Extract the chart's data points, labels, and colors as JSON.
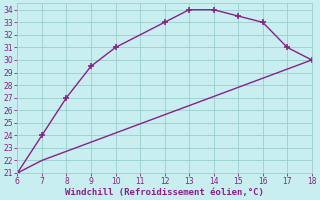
{
  "upper_line_x": [
    6,
    7,
    8,
    9,
    10,
    12,
    13,
    14,
    15,
    16,
    17,
    18
  ],
  "upper_line_y": [
    21,
    24,
    27,
    29.5,
    31,
    33,
    34,
    34,
    33.5,
    33,
    31,
    30
  ],
  "lower_line_x": [
    6,
    7,
    18
  ],
  "lower_line_y": [
    21,
    22,
    30
  ],
  "line_color": "#882288",
  "bg_color": "#c8eef0",
  "grid_color": "#9acece",
  "xlabel": "Windchill (Refroidissement éolien,°C)",
  "xlim": [
    6,
    18
  ],
  "ylim": [
    21,
    34.5
  ],
  "xticks": [
    6,
    7,
    8,
    9,
    10,
    11,
    12,
    13,
    14,
    15,
    16,
    17,
    18
  ],
  "yticks": [
    21,
    22,
    23,
    24,
    25,
    26,
    27,
    28,
    29,
    30,
    31,
    32,
    33,
    34
  ],
  "tick_fontsize": 5.5,
  "xlabel_fontsize": 6.5,
  "marker": "+",
  "marker_size": 4,
  "line_width": 1.0
}
